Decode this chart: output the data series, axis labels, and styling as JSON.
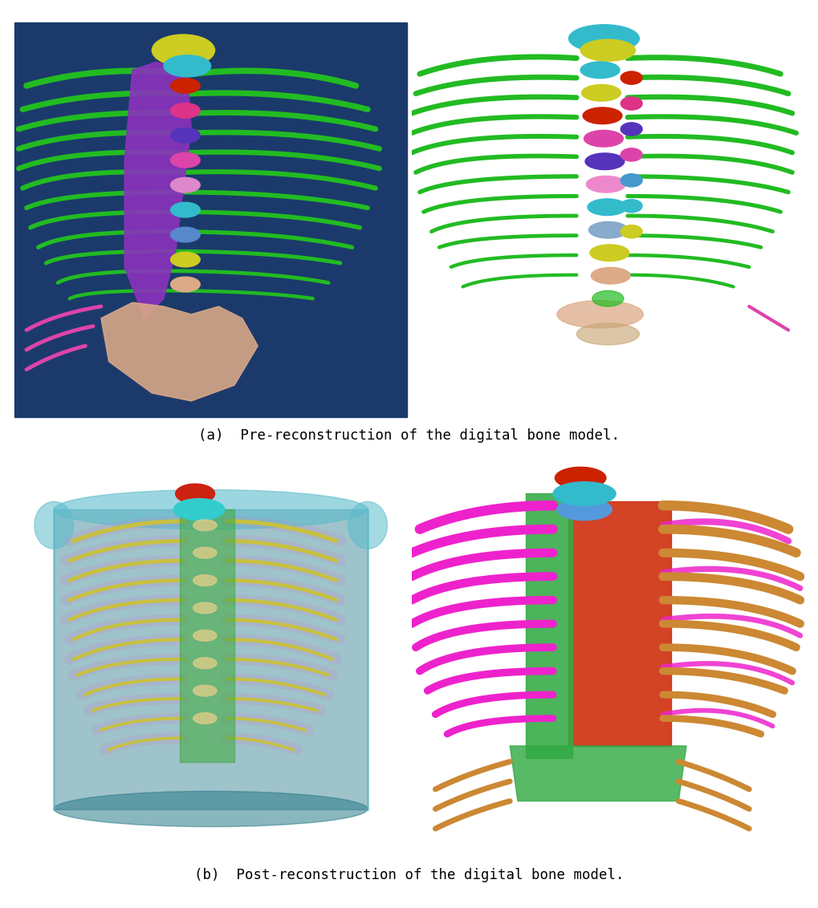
{
  "figure_width": 10.2,
  "figure_height": 11.32,
  "dpi": 100,
  "background_color": "#ffffff",
  "panel_bg": "#1b3a6b",
  "panel_bg_bottom_left": "#2a7f8f",
  "caption_a": "(a)  Pre-reconstruction of the digital bone model.",
  "caption_b": "(b)  Post-reconstruction of the digital bone model.",
  "caption_fontsize": 12.5,
  "caption_font": "DejaVu Sans Mono",
  "border_color": "#222244",
  "border_lw": 1.2,
  "mid_line_color": "#ffffff",
  "mid_line_lw": 2.0,
  "green": "#22bb22",
  "dark_green": "#179917",
  "purple": "#8833bb",
  "pink": "#dd44aa",
  "magenta": "#ee22cc",
  "red": "#cc2200",
  "blue_v": "#5533bb",
  "cyan_light": "#33bbcc",
  "yellow": "#cccc22",
  "salmon": "#ddaa88",
  "light_pink": "#ee88cc",
  "orange": "#cc8833",
  "teal_cyl": "#2a7a8a"
}
